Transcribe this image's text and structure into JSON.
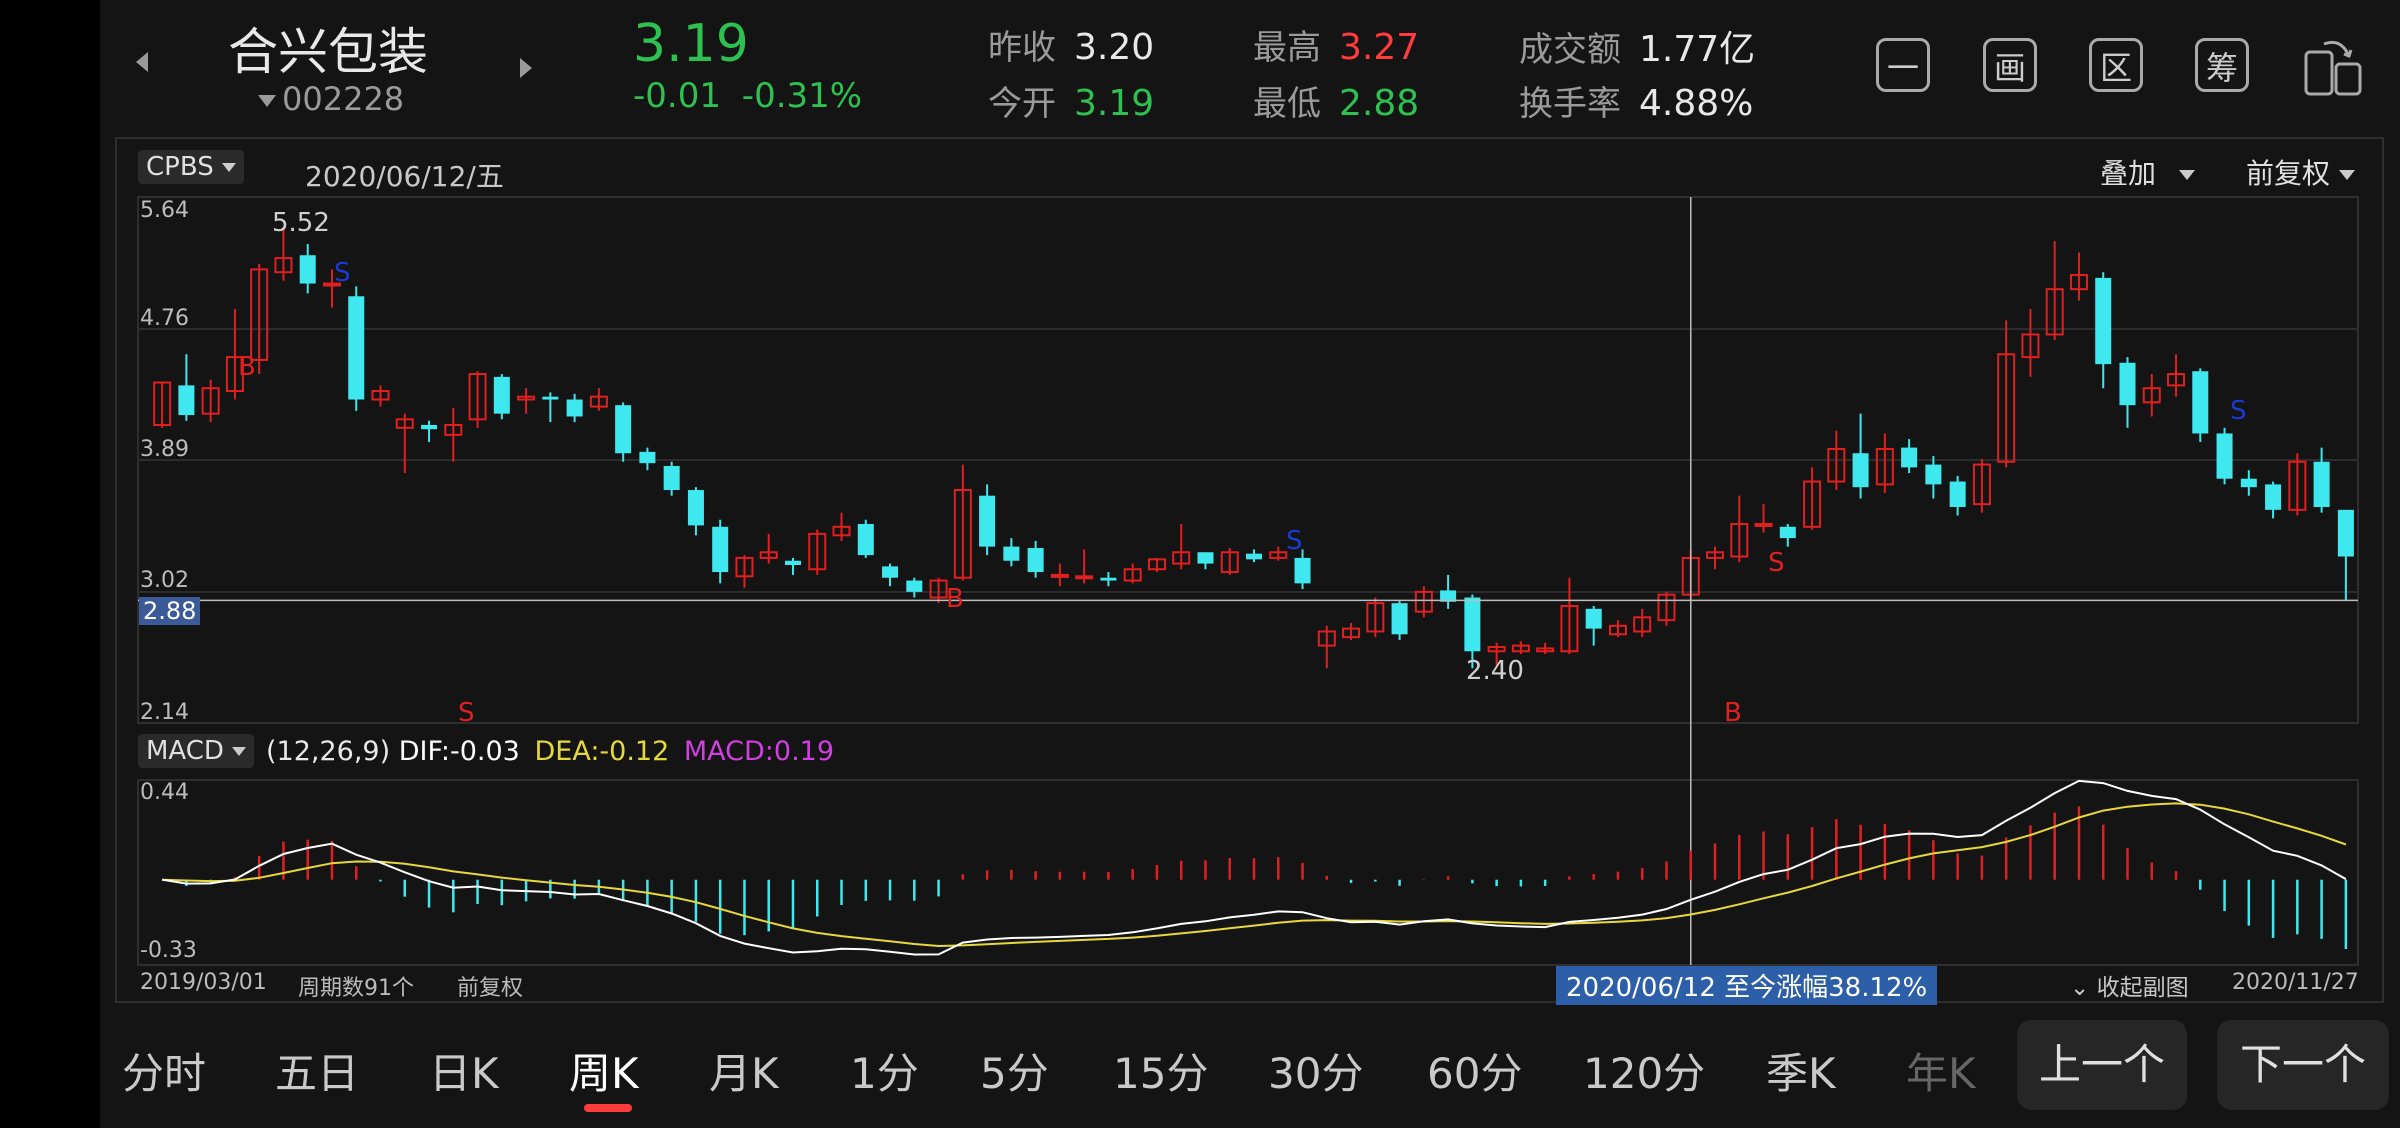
{
  "header": {
    "stock_name": "合兴包装",
    "stock_code": "002228",
    "price": "3.19",
    "change": "-0.01",
    "change_pct": "-0.31%",
    "stats": [
      {
        "label": "昨收",
        "value": "3.20",
        "color": "#e8e8e8"
      },
      {
        "label": "今开",
        "value": "3.19",
        "color": "#2ec050"
      },
      {
        "label": "最高",
        "value": "3.27",
        "color": "#ff3b3b"
      },
      {
        "label": "最低",
        "value": "2.88",
        "color": "#2ec050"
      },
      {
        "label": "成交额",
        "value": "1.77亿",
        "color": "#e8e8e8"
      },
      {
        "label": "换手率",
        "value": "4.88%",
        "color": "#e8e8e8"
      }
    ],
    "tools": [
      "一",
      "画",
      "区",
      "筹"
    ]
  },
  "chart": {
    "indicator": "CPBS",
    "date": "2020/06/12/五",
    "overlay": "叠加",
    "adjust": "前复权",
    "y_ticks": [
      "5.64",
      "4.76",
      "3.89",
      "3.02",
      "2.14"
    ],
    "crosshair_price": "2.88",
    "high_label": "5.52",
    "low_label": "2.40",
    "signals": [
      "B",
      "S",
      "S",
      "B",
      "S",
      "B",
      "S",
      "S"
    ],
    "macd": {
      "name": "MACD",
      "params": "(12,26,9)",
      "dif": "DIF:-0.03",
      "dea": "DEA:-0.12",
      "macd": "MACD:0.19",
      "top_tick": "0.44",
      "bottom_tick": "-0.33"
    },
    "footer": {
      "start_date": "2019/03/01",
      "periods": "周期数91个",
      "adjust": "前复权",
      "range_info": "2020/06/12 至今涨幅38.12%",
      "collapse": "收起副图",
      "end_date": "2020/11/27"
    }
  },
  "tabs": [
    "分时",
    "五日",
    "日K",
    "周K",
    "月K",
    "1分",
    "5分",
    "15分",
    "30分",
    "60分",
    "120分",
    "季K",
    "年K"
  ],
  "active_tab": "周K",
  "buttons": {
    "prev": "上一个",
    "next": "下一个"
  },
  "colors": {
    "up": "#e02020",
    "down": "#3fe8ee",
    "dif": "#ffffff",
    "dea": "#e6d83c",
    "macd_text": "#d040e0",
    "accent": "#ff3b3b"
  },
  "chart_data": {
    "type": "candlestick",
    "period": "weekly",
    "ylim": [
      2.14,
      5.64
    ],
    "ohlc": [
      [
        4.12,
        4.42,
        4.42,
        4.1
      ],
      [
        4.4,
        4.19,
        4.62,
        4.15
      ],
      [
        4.2,
        4.38,
        4.44,
        4.14
      ],
      [
        4.36,
        4.6,
        4.94,
        4.3
      ],
      [
        4.58,
        5.22,
        5.26,
        4.48
      ],
      [
        5.2,
        5.3,
        5.52,
        5.14
      ],
      [
        5.32,
        5.12,
        5.4,
        5.05
      ],
      [
        5.12,
        5.12,
        5.22,
        4.95
      ],
      [
        5.03,
        4.3,
        5.1,
        4.22
      ],
      [
        4.3,
        4.36,
        4.4,
        4.25
      ],
      [
        4.1,
        4.16,
        4.2,
        3.78
      ],
      [
        4.12,
        4.09,
        4.15,
        4.0
      ],
      [
        4.05,
        4.12,
        4.24,
        3.86
      ],
      [
        4.16,
        4.48,
        4.5,
        4.1
      ],
      [
        4.46,
        4.2,
        4.48,
        4.16
      ],
      [
        4.3,
        4.32,
        4.38,
        4.2
      ],
      [
        4.32,
        4.3,
        4.35,
        4.14
      ],
      [
        4.3,
        4.18,
        4.34,
        4.14
      ],
      [
        4.25,
        4.32,
        4.38,
        4.22
      ],
      [
        4.26,
        3.92,
        4.28,
        3.86
      ],
      [
        3.93,
        3.85,
        3.96,
        3.8
      ],
      [
        3.83,
        3.66,
        3.86,
        3.62
      ],
      [
        3.66,
        3.41,
        3.68,
        3.34
      ],
      [
        3.4,
        3.08,
        3.45,
        3.0
      ],
      [
        3.05,
        3.18,
        3.2,
        2.97
      ],
      [
        3.18,
        3.22,
        3.35,
        3.14
      ],
      [
        3.16,
        3.13,
        3.18,
        3.06
      ],
      [
        3.1,
        3.35,
        3.38,
        3.06
      ],
      [
        3.34,
        3.4,
        3.5,
        3.3
      ],
      [
        3.42,
        3.2,
        3.45,
        3.18
      ],
      [
        3.12,
        3.04,
        3.14,
        2.98
      ],
      [
        3.02,
        2.94,
        3.04,
        2.9
      ],
      [
        2.9,
        3.02,
        3.04,
        2.86
      ],
      [
        3.04,
        3.66,
        3.84,
        3.02
      ],
      [
        3.62,
        3.26,
        3.7,
        3.2
      ],
      [
        3.26,
        3.16,
        3.32,
        3.12
      ],
      [
        3.25,
        3.08,
        3.3,
        3.04
      ],
      [
        3.06,
        3.06,
        3.14,
        2.98
      ],
      [
        3.05,
        3.05,
        3.24,
        3.0
      ],
      [
        3.04,
        3.02,
        3.08,
        2.98
      ],
      [
        3.02,
        3.1,
        3.14,
        3.0
      ],
      [
        3.1,
        3.17,
        3.18,
        3.08
      ],
      [
        3.14,
        3.22,
        3.42,
        3.1
      ],
      [
        3.22,
        3.14,
        3.22,
        3.1
      ],
      [
        3.08,
        3.22,
        3.25,
        3.06
      ],
      [
        3.21,
        3.17,
        3.24,
        3.15
      ],
      [
        3.18,
        3.22,
        3.26,
        3.16
      ],
      [
        3.18,
        3.0,
        3.24,
        2.96
      ],
      [
        2.56,
        2.66,
        2.7,
        2.4
      ],
      [
        2.62,
        2.68,
        2.72,
        2.6
      ],
      [
        2.66,
        2.86,
        2.9,
        2.62
      ],
      [
        2.86,
        2.64,
        2.88,
        2.6
      ],
      [
        2.8,
        2.94,
        2.98,
        2.76
      ],
      [
        2.95,
        2.87,
        3.06,
        2.82
      ],
      [
        2.9,
        2.52,
        2.92,
        2.4
      ],
      [
        2.52,
        2.55,
        2.58,
        2.42
      ],
      [
        2.52,
        2.56,
        2.59,
        2.5
      ],
      [
        2.52,
        2.54,
        2.58,
        2.5
      ],
      [
        2.52,
        2.84,
        3.04,
        2.5
      ],
      [
        2.82,
        2.68,
        2.84,
        2.56
      ],
      [
        2.64,
        2.7,
        2.74,
        2.62
      ],
      [
        2.66,
        2.76,
        2.82,
        2.62
      ],
      [
        2.74,
        2.92,
        2.94,
        2.7
      ],
      [
        2.92,
        3.18,
        3.24,
        2.88
      ],
      [
        3.18,
        3.22,
        3.26,
        3.1
      ],
      [
        3.19,
        3.42,
        3.62,
        3.15
      ],
      [
        3.42,
        3.42,
        3.56,
        3.36
      ],
      [
        3.4,
        3.32,
        3.42,
        3.26
      ],
      [
        3.4,
        3.72,
        3.82,
        3.38
      ],
      [
        3.72,
        3.95,
        4.08,
        3.66
      ],
      [
        3.92,
        3.68,
        4.2,
        3.6
      ],
      [
        3.7,
        3.95,
        4.06,
        3.64
      ],
      [
        3.96,
        3.82,
        4.02,
        3.78
      ],
      [
        3.84,
        3.7,
        3.9,
        3.6
      ],
      [
        3.72,
        3.54,
        3.76,
        3.48
      ],
      [
        3.56,
        3.84,
        3.88,
        3.5
      ],
      [
        3.86,
        4.62,
        4.86,
        3.82
      ],
      [
        4.6,
        4.76,
        4.94,
        4.46
      ],
      [
        4.76,
        5.08,
        5.42,
        4.72
      ],
      [
        5.08,
        5.18,
        5.34,
        5.0
      ],
      [
        5.16,
        4.55,
        5.2,
        4.38
      ],
      [
        4.56,
        4.26,
        4.6,
        4.1
      ],
      [
        4.28,
        4.38,
        4.48,
        4.18
      ],
      [
        4.4,
        4.48,
        4.62,
        4.32
      ],
      [
        4.5,
        4.06,
        4.52,
        4.0
      ],
      [
        4.06,
        3.74,
        4.1,
        3.7
      ],
      [
        3.74,
        3.68,
        3.8,
        3.62
      ],
      [
        3.7,
        3.52,
        3.72,
        3.46
      ],
      [
        3.52,
        3.86,
        3.92,
        3.48
      ],
      [
        3.86,
        3.54,
        3.96,
        3.5
      ],
      [
        3.52,
        3.19,
        3.27,
        2.88
      ]
    ]
  }
}
